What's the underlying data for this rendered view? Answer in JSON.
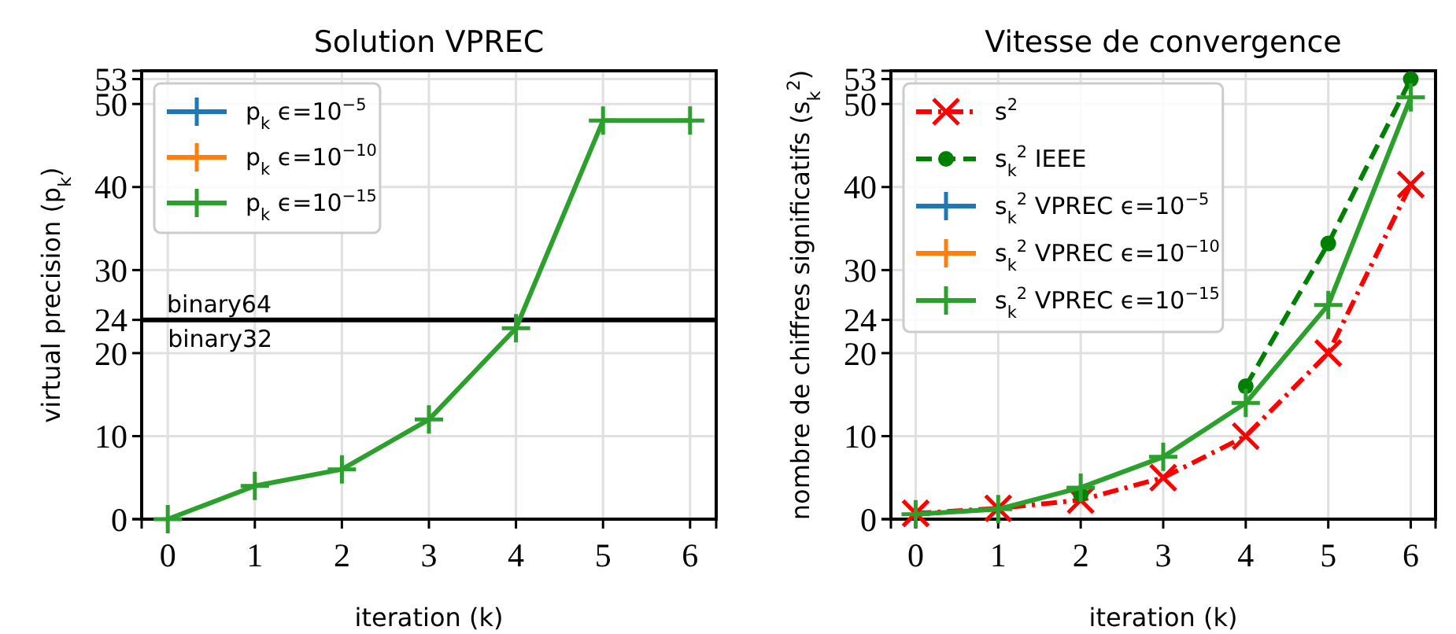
{
  "chart_data": [
    {
      "type": "line",
      "title": "Solution VPREC",
      "xlabel": "iteration (k)",
      "ylabel": "virtual precision (p$_{k}$)",
      "x": [
        0,
        1,
        2,
        3,
        4,
        5,
        6
      ],
      "xlim": [
        -0.3,
        6.3
      ],
      "xticks": [
        0,
        1,
        2,
        3,
        4,
        5,
        6
      ],
      "ylim": [
        0,
        54
      ],
      "yticks": [
        0,
        10,
        20,
        24,
        30,
        40,
        50,
        53
      ],
      "grid": true,
      "legend": "top left",
      "line_style": "solid",
      "series": [
        {
          "name": "p$_{k}$ ϵ=10$^{−5}$",
          "color": "#1f77b4",
          "marker": "plus",
          "values": [
            null,
            null,
            null,
            null,
            null,
            null,
            null
          ]
        },
        {
          "name": "p$_{k}$ ϵ=10$^{−10}$",
          "color": "#ff7f0e",
          "marker": "plus",
          "values": [
            null,
            null,
            null,
            null,
            null,
            null,
            null
          ]
        },
        {
          "name": "p$_{k}$ ϵ=10$^{−15}$",
          "color": "#2ca02c",
          "marker": "plus",
          "values": [
            0,
            4,
            6,
            12,
            23,
            48,
            48
          ]
        }
      ],
      "ref_lines": [
        {
          "axis": "y",
          "value": 24,
          "label": "binary64",
          "color": "#000000"
        }
      ],
      "annotations": [
        {
          "text": "binary32",
          "x": 0,
          "y": 24
        }
      ]
    },
    {
      "type": "line",
      "title": "Vitesse de convergence",
      "xlabel": "iteration (k)",
      "ylabel": "nombre de chiffres significatifs (s$_{k}$$^{2}$)",
      "x": [
        0,
        1,
        2,
        3,
        4,
        5,
        6
      ],
      "xlim": [
        -0.3,
        6.3
      ],
      "xticks": [
        0,
        1,
        2,
        3,
        4,
        5,
        6
      ],
      "ylim": [
        0,
        54
      ],
      "yticks": [
        0,
        10,
        20,
        24,
        30,
        40,
        50,
        53
      ],
      "grid": true,
      "legend": "top left",
      "series": [
        {
          "name": "s$^{2}$",
          "color": "#ff0000",
          "marker": "cross",
          "line_style": "dashdot",
          "values": [
            0.7,
            1.3,
            2.3,
            5,
            10,
            20,
            40.3
          ]
        },
        {
          "name": "s$_{k}$$^{2}$ IEEE",
          "color": "#008000",
          "marker": "circle",
          "line_style": "dashed",
          "values": [
            null,
            null,
            3,
            null,
            16,
            33.2,
            53
          ]
        },
        {
          "name": "s$_{k}$$^{2}$ VPREC ϵ=10$^{−5}$",
          "color": "#1f77b4",
          "marker": "plus",
          "line_style": "solid",
          "values": [
            null,
            null,
            null,
            null,
            null,
            null,
            null
          ]
        },
        {
          "name": "s$_{k}$$^{2}$ VPREC ϵ=10$^{−10}$",
          "color": "#ff7f0e",
          "marker": "plus",
          "line_style": "solid",
          "values": [
            null,
            null,
            null,
            null,
            null,
            null,
            null
          ]
        },
        {
          "name": "s$_{k}$$^{2}$ VPREC ϵ=10$^{−15}$",
          "color": "#2ca02c",
          "marker": "plus",
          "line_style": "solid",
          "values": [
            0.6,
            1.2,
            3.8,
            7.5,
            14,
            25.8,
            50.8
          ]
        }
      ]
    }
  ]
}
